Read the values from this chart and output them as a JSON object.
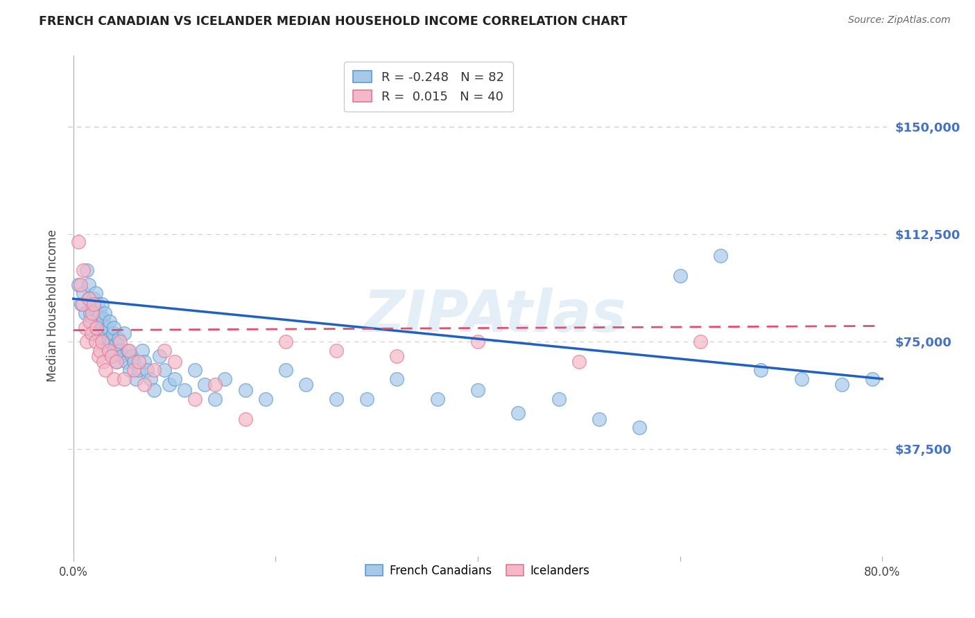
{
  "title": "FRENCH CANADIAN VS ICELANDER MEDIAN HOUSEHOLD INCOME CORRELATION CHART",
  "source": "Source: ZipAtlas.com",
  "ylabel": "Median Household Income",
  "xlim": [
    -0.005,
    0.805
  ],
  "ylim": [
    0,
    175000
  ],
  "yticks": [
    37500,
    75000,
    112500,
    150000
  ],
  "xticks": [
    0.0,
    0.2,
    0.4,
    0.6,
    0.8
  ],
  "xtick_labels": [
    "0.0%",
    "",
    "",
    "",
    "80.0%"
  ],
  "ytick_labels": [
    "$37,500",
    "$75,000",
    "$112,500",
    "$150,000"
  ],
  "blue_scatter_color": "#a8c8e8",
  "blue_edge_color": "#5b9bd5",
  "pink_scatter_color": "#f4b8c8",
  "pink_edge_color": "#e07898",
  "line_blue_color": "#2060c0",
  "line_pink_color": "#e05070",
  "bg_color": "#ffffff",
  "grid_color": "#d0d0d0",
  "watermark_color": "#c8dff0",
  "watermark_text": "ZIPAtlas",
  "legend_R_blue": "-0.248",
  "legend_N_blue": "82",
  "legend_R_pink": "0.015",
  "legend_N_pink": "40",
  "fc_x": [
    0.005,
    0.008,
    0.01,
    0.012,
    0.013,
    0.015,
    0.015,
    0.017,
    0.018,
    0.019,
    0.02,
    0.02,
    0.022,
    0.022,
    0.023,
    0.024,
    0.025,
    0.025,
    0.026,
    0.027,
    0.028,
    0.028,
    0.029,
    0.03,
    0.03,
    0.031,
    0.032,
    0.033,
    0.034,
    0.035,
    0.036,
    0.037,
    0.038,
    0.039,
    0.04,
    0.04,
    0.042,
    0.043,
    0.045,
    0.046,
    0.048,
    0.05,
    0.052,
    0.054,
    0.056,
    0.058,
    0.06,
    0.062,
    0.065,
    0.068,
    0.07,
    0.073,
    0.076,
    0.08,
    0.085,
    0.09,
    0.095,
    0.1,
    0.11,
    0.12,
    0.13,
    0.14,
    0.15,
    0.17,
    0.19,
    0.21,
    0.23,
    0.26,
    0.29,
    0.32,
    0.36,
    0.4,
    0.44,
    0.48,
    0.52,
    0.56,
    0.6,
    0.64,
    0.68,
    0.72,
    0.76,
    0.79
  ],
  "fc_y": [
    95000,
    88000,
    92000,
    85000,
    100000,
    90000,
    95000,
    85000,
    82000,
    88000,
    90000,
    78000,
    92000,
    86000,
    80000,
    88000,
    84000,
    78000,
    85000,
    82000,
    76000,
    88000,
    80000,
    83000,
    77000,
    85000,
    79000,
    73000,
    80000,
    76000,
    82000,
    75000,
    70000,
    78000,
    72000,
    80000,
    74000,
    68000,
    76000,
    72000,
    70000,
    78000,
    68000,
    72000,
    65000,
    70000,
    68000,
    62000,
    65000,
    72000,
    68000,
    65000,
    62000,
    58000,
    70000,
    65000,
    60000,
    62000,
    58000,
    65000,
    60000,
    55000,
    62000,
    58000,
    55000,
    65000,
    60000,
    55000,
    55000,
    62000,
    55000,
    58000,
    50000,
    55000,
    48000,
    45000,
    98000,
    105000,
    65000,
    62000,
    60000,
    62000
  ],
  "ic_x": [
    0.005,
    0.007,
    0.009,
    0.01,
    0.012,
    0.013,
    0.015,
    0.016,
    0.018,
    0.019,
    0.02,
    0.022,
    0.023,
    0.025,
    0.026,
    0.028,
    0.03,
    0.032,
    0.035,
    0.038,
    0.04,
    0.043,
    0.046,
    0.05,
    0.055,
    0.06,
    0.065,
    0.07,
    0.08,
    0.09,
    0.1,
    0.12,
    0.14,
    0.17,
    0.21,
    0.26,
    0.32,
    0.4,
    0.5,
    0.62
  ],
  "ic_y": [
    110000,
    95000,
    88000,
    100000,
    80000,
    75000,
    90000,
    82000,
    78000,
    85000,
    88000,
    75000,
    80000,
    70000,
    72000,
    75000,
    68000,
    65000,
    72000,
    70000,
    62000,
    68000,
    75000,
    62000,
    72000,
    65000,
    68000,
    60000,
    65000,
    72000,
    68000,
    55000,
    60000,
    48000,
    75000,
    72000,
    70000,
    75000,
    68000,
    75000
  ]
}
